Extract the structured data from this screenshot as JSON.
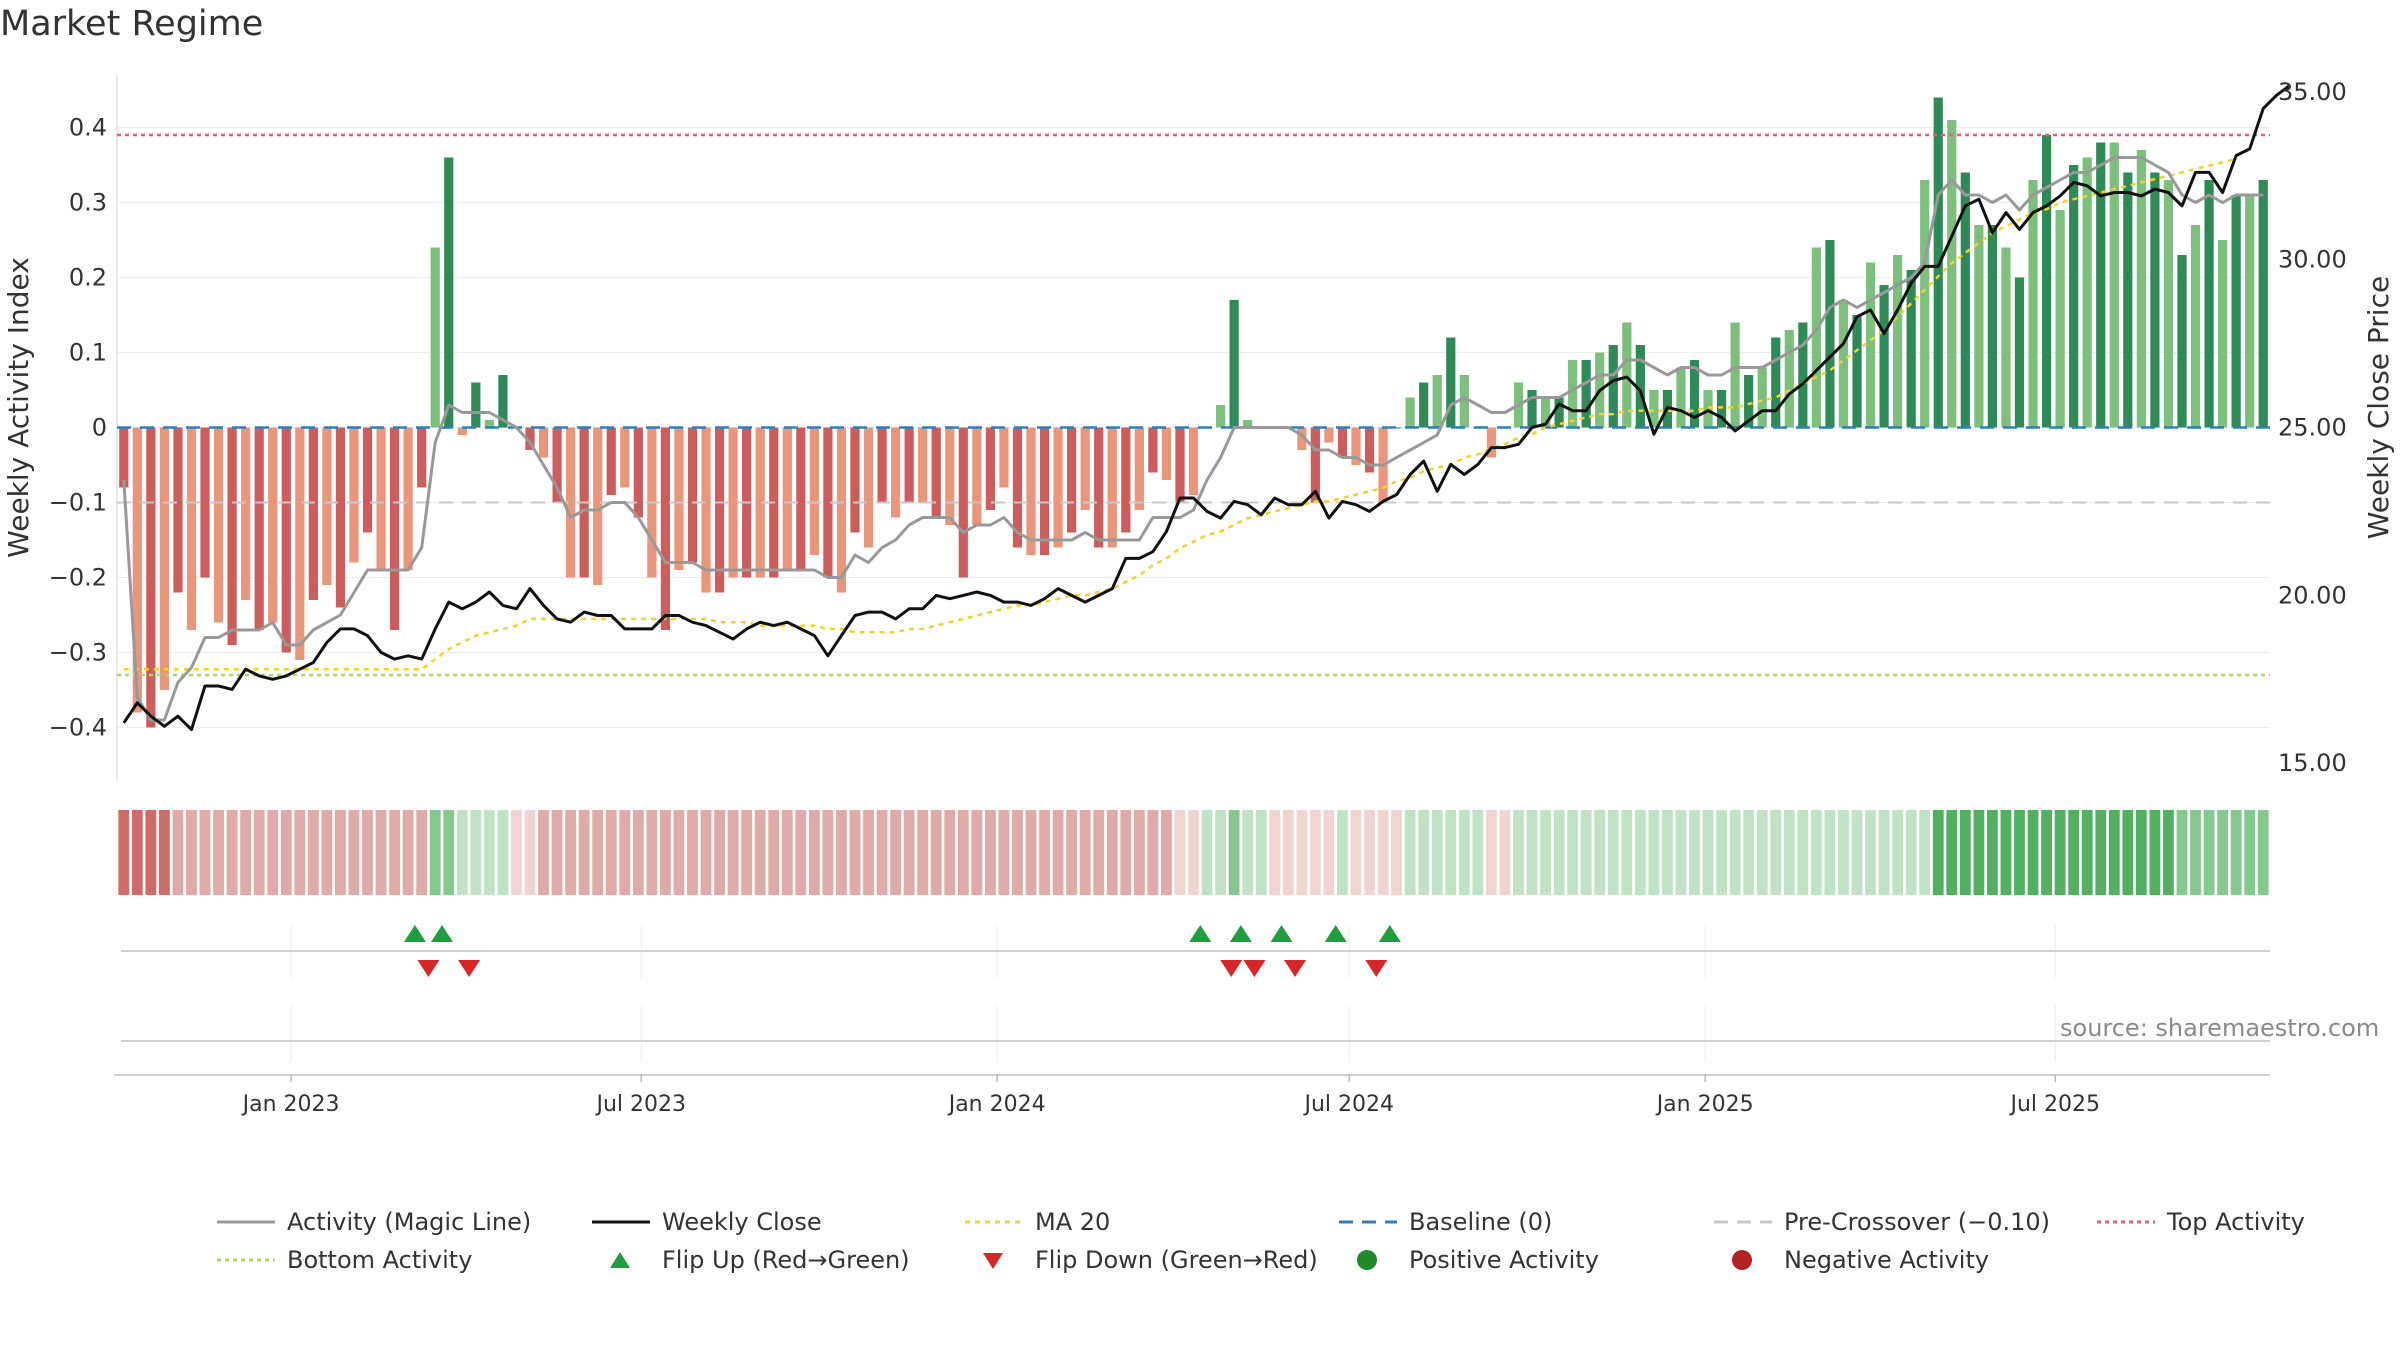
{
  "title": "Market Regime",
  "source": "source: sharemaestro.com",
  "colors": {
    "magic_line": "#999999",
    "weekly_close": "#111111",
    "ma20": "#f0d42a",
    "baseline": "#2f7fb8",
    "pre_crossover": "#c8c8c8",
    "top_activity": "#e0607e",
    "bottom_activity": "#a6d96a",
    "pos_strong": "#2e8b57",
    "pos_light": "#7dbf7d",
    "neg_strong": "#cd5c5c",
    "neg_light": "#e9967a",
    "flip_up": "#1f9e3f",
    "flip_down": "#d62728",
    "positive_activity": "#1e8a2c",
    "negative_activity": "#b22222"
  },
  "legend": [
    {
      "label": "Activity (Magic Line)",
      "kind": "line",
      "color": "#999999",
      "dash": ""
    },
    {
      "label": "Weekly Close",
      "kind": "line",
      "color": "#111111",
      "dash": ""
    },
    {
      "label": "MA 20",
      "kind": "line",
      "color": "#f0d42a",
      "dash": "5,5"
    },
    {
      "label": "Baseline (0)",
      "kind": "line",
      "color": "#2f7fb8",
      "dash": "14,9"
    },
    {
      "label": "Pre-Crossover (−0.10)",
      "kind": "line",
      "color": "#c8c8c8",
      "dash": "14,9"
    },
    {
      "label": "Top Activity",
      "kind": "line",
      "color": "#e0607e",
      "dash": "4,4"
    },
    {
      "label": "Bottom Activity",
      "kind": "line",
      "color": "#a6d96a",
      "dash": "4,4"
    },
    {
      "label": "Flip Up (Red→Green)",
      "kind": "tri-up",
      "color": "#1f9e3f"
    },
    {
      "label": "Flip Down (Green→Red)",
      "kind": "tri-down",
      "color": "#d62728"
    },
    {
      "label": "Positive Activity",
      "kind": "dot",
      "color": "#1e8a2c"
    },
    {
      "label": "Negative Activity",
      "kind": "dot",
      "color": "#b22222"
    }
  ],
  "chart_data": {
    "type": "bar",
    "ylabel_left": "Weekly Activity Index",
    "ylabel_right": "Weekly Close Price",
    "ylim_left": [
      -0.47,
      0.47
    ],
    "ylim_right": [
      14.5,
      35.5
    ],
    "yticks_left": [
      "−0.4",
      "−0.3",
      "−0.2",
      "−0.1",
      "0",
      "0.1",
      "0.2",
      "0.3",
      "0.4"
    ],
    "yticks_left_values": [
      -0.4,
      -0.3,
      -0.2,
      -0.1,
      0,
      0.1,
      0.2,
      0.3,
      0.4
    ],
    "yticks_right": [
      "15.00",
      "20.00",
      "25.00",
      "30.00",
      "35.00"
    ],
    "yticks_right_values": [
      15,
      20,
      25,
      30,
      35
    ],
    "x_start": "2022-10-03",
    "x_end": "2025-10-20",
    "xticks": [
      {
        "date": "2023-01-01",
        "label": "Jan 2023"
      },
      {
        "date": "2023-07-01",
        "label": "Jul 2023"
      },
      {
        "date": "2024-01-01",
        "label": "Jan 2024"
      },
      {
        "date": "2024-07-01",
        "label": "Jul 2024"
      },
      {
        "date": "2025-01-01",
        "label": "Jan 2025"
      },
      {
        "date": "2025-07-01",
        "label": "Jul 2025"
      }
    ],
    "reference_lines": {
      "top_activity": 0.39,
      "bottom_activity": -0.33,
      "pre_crossover": -0.1,
      "baseline": 0
    },
    "activity": [
      -0.08,
      -0.38,
      -0.4,
      -0.35,
      -0.22,
      -0.27,
      -0.2,
      -0.26,
      -0.29,
      -0.23,
      -0.27,
      -0.26,
      -0.3,
      -0.31,
      -0.23,
      -0.21,
      -0.24,
      -0.18,
      -0.14,
      -0.19,
      -0.27,
      -0.19,
      -0.08,
      0.24,
      0.36,
      -0.01,
      0.06,
      0.01,
      0.07,
      0.0,
      -0.03,
      -0.04,
      -0.1,
      -0.2,
      -0.2,
      -0.21,
      -0.09,
      -0.08,
      -0.12,
      -0.2,
      -0.27,
      -0.19,
      -0.18,
      -0.22,
      -0.22,
      -0.2,
      -0.2,
      -0.2,
      -0.2,
      -0.19,
      -0.19,
      -0.17,
      -0.2,
      -0.22,
      -0.14,
      -0.16,
      -0.1,
      -0.12,
      -0.1,
      -0.1,
      -0.12,
      -0.13,
      -0.2,
      -0.13,
      -0.11,
      -0.08,
      -0.16,
      -0.17,
      -0.17,
      -0.16,
      -0.14,
      -0.11,
      -0.16,
      -0.16,
      -0.14,
      -0.11,
      -0.06,
      -0.07,
      -0.1,
      -0.09,
      0.0,
      0.03,
      0.17,
      0.01,
      0.0,
      0.0,
      0.0,
      -0.03,
      -0.1,
      -0.02,
      -0.04,
      -0.05,
      -0.06,
      -0.1,
      0.0,
      0.04,
      0.06,
      0.07,
      0.12,
      0.07,
      0.0,
      -0.04,
      0.0,
      0.06,
      0.05,
      0.04,
      0.04,
      0.09,
      0.09,
      0.1,
      0.11,
      0.14,
      0.11,
      0.05,
      0.05,
      0.08,
      0.09,
      0.05,
      0.05,
      0.14,
      0.07,
      0.08,
      0.12,
      0.13,
      0.14,
      0.24,
      0.25,
      0.17,
      0.15,
      0.22,
      0.19,
      0.23,
      0.21,
      0.33,
      0.44,
      0.41,
      0.34,
      0.27,
      0.27,
      0.24,
      0.2,
      0.33,
      0.39,
      0.29,
      0.35,
      0.36,
      0.38,
      0.38,
      0.34,
      0.37,
      0.34,
      0.33,
      0.23,
      0.27,
      0.33,
      0.25,
      0.31,
      0.31,
      0.33
    ],
    "magic_line": [
      -0.07,
      -0.36,
      -0.39,
      -0.39,
      -0.34,
      -0.32,
      -0.28,
      -0.28,
      -0.27,
      -0.27,
      -0.27,
      -0.26,
      -0.29,
      -0.29,
      -0.27,
      -0.26,
      -0.25,
      -0.22,
      -0.19,
      -0.19,
      -0.19,
      -0.19,
      -0.16,
      -0.02,
      0.03,
      0.02,
      0.02,
      0.02,
      0.01,
      0.0,
      -0.02,
      -0.05,
      -0.08,
      -0.12,
      -0.11,
      -0.11,
      -0.1,
      -0.1,
      -0.12,
      -0.15,
      -0.18,
      -0.18,
      -0.18,
      -0.19,
      -0.19,
      -0.19,
      -0.19,
      -0.19,
      -0.19,
      -0.19,
      -0.19,
      -0.19,
      -0.2,
      -0.2,
      -0.17,
      -0.18,
      -0.16,
      -0.15,
      -0.13,
      -0.12,
      -0.12,
      -0.12,
      -0.14,
      -0.13,
      -0.13,
      -0.12,
      -0.14,
      -0.15,
      -0.15,
      -0.15,
      -0.15,
      -0.14,
      -0.15,
      -0.15,
      -0.15,
      -0.15,
      -0.12,
      -0.12,
      -0.12,
      -0.11,
      -0.07,
      -0.04,
      0.0,
      0.0,
      0.0,
      0.0,
      0.0,
      -0.01,
      -0.03,
      -0.03,
      -0.04,
      -0.04,
      -0.05,
      -0.05,
      -0.04,
      -0.03,
      -0.02,
      -0.01,
      0.03,
      0.04,
      0.03,
      0.02,
      0.02,
      0.03,
      0.04,
      0.04,
      0.04,
      0.05,
      0.06,
      0.07,
      0.07,
      0.09,
      0.09,
      0.08,
      0.07,
      0.08,
      0.08,
      0.07,
      0.07,
      0.08,
      0.08,
      0.08,
      0.09,
      0.1,
      0.11,
      0.13,
      0.16,
      0.17,
      0.16,
      0.17,
      0.18,
      0.19,
      0.2,
      0.22,
      0.31,
      0.33,
      0.31,
      0.31,
      0.3,
      0.31,
      0.29,
      0.31,
      0.32,
      0.33,
      0.34,
      0.34,
      0.35,
      0.36,
      0.36,
      0.36,
      0.35,
      0.34,
      0.31,
      0.3,
      0.31,
      0.3,
      0.31,
      0.31,
      0.31
    ],
    "weekly_close": [
      16.2,
      16.8,
      16.4,
      16.1,
      16.4,
      16.0,
      17.3,
      17.3,
      17.2,
      17.8,
      17.6,
      17.5,
      17.6,
      17.8,
      18.0,
      18.6,
      19.0,
      19.0,
      18.8,
      18.3,
      18.1,
      18.2,
      18.1,
      19.0,
      19.8,
      19.6,
      19.8,
      20.1,
      19.7,
      19.6,
      20.2,
      19.7,
      19.3,
      19.2,
      19.5,
      19.4,
      19.4,
      19.0,
      19.0,
      19.0,
      19.4,
      19.4,
      19.2,
      19.1,
      18.9,
      18.7,
      19.0,
      19.2,
      19.1,
      19.2,
      19.0,
      18.8,
      18.2,
      18.8,
      19.4,
      19.5,
      19.5,
      19.3,
      19.6,
      19.6,
      20.0,
      19.9,
      20.0,
      20.1,
      20.0,
      19.8,
      19.8,
      19.7,
      19.9,
      20.2,
      20.0,
      19.8,
      20.0,
      20.2,
      21.1,
      21.1,
      21.3,
      21.9,
      22.9,
      22.9,
      22.5,
      22.3,
      22.8,
      22.7,
      22.4,
      22.9,
      22.7,
      22.7,
      23.1,
      22.3,
      22.8,
      22.7,
      22.5,
      22.8,
      23.0,
      23.6,
      24.0,
      23.1,
      23.9,
      23.6,
      23.9,
      24.4,
      24.4,
      24.5,
      25.0,
      25.1,
      25.7,
      25.5,
      25.5,
      26.1,
      26.4,
      26.5,
      26.1,
      24.8,
      25.6,
      25.5,
      25.3,
      25.5,
      25.3,
      24.9,
      25.2,
      25.5,
      25.5,
      26.0,
      26.3,
      26.7,
      27.1,
      27.5,
      28.3,
      28.5,
      27.8,
      28.5,
      29.3,
      29.8,
      29.8,
      30.7,
      31.6,
      31.8,
      30.8,
      31.4,
      30.9,
      31.4,
      31.6,
      31.9,
      32.3,
      32.2,
      31.9,
      32.0,
      32.0,
      31.9,
      32.1,
      32.0,
      31.6,
      32.6,
      32.6,
      32.0,
      33.1,
      33.3,
      34.5,
      34.9,
      35.2
    ],
    "ma20": [
      17.8,
      17.8,
      17.8,
      17.8,
      17.8,
      17.8,
      17.8,
      17.8,
      17.8,
      17.8,
      17.8,
      17.8,
      17.8,
      17.8,
      17.8,
      17.8,
      17.8,
      17.8,
      17.8,
      17.8,
      17.8,
      17.8,
      17.8,
      18.1,
      18.4,
      18.6,
      18.8,
      18.9,
      19.0,
      19.1,
      19.3,
      19.3,
      19.3,
      19.3,
      19.3,
      19.3,
      19.3,
      19.3,
      19.3,
      19.3,
      19.3,
      19.3,
      19.3,
      19.3,
      19.2,
      19.2,
      19.2,
      19.1,
      19.1,
      19.1,
      19.1,
      19.1,
      19.0,
      19.0,
      18.9,
      18.9,
      18.9,
      18.9,
      19.0,
      19.0,
      19.1,
      19.2,
      19.3,
      19.4,
      19.5,
      19.6,
      19.7,
      19.7,
      19.8,
      19.9,
      20.0,
      20.0,
      20.1,
      20.2,
      20.4,
      20.6,
      20.9,
      21.1,
      21.4,
      21.6,
      21.8,
      21.9,
      22.1,
      22.3,
      22.4,
      22.5,
      22.6,
      22.7,
      22.8,
      22.8,
      22.9,
      23.0,
      23.1,
      23.2,
      23.4,
      23.5,
      23.7,
      23.8,
      23.9,
      24.1,
      24.2,
      24.4,
      24.5,
      24.7,
      24.8,
      25.0,
      25.1,
      25.2,
      25.3,
      25.4,
      25.4,
      25.5,
      25.5,
      25.5,
      25.5,
      25.5,
      25.5,
      25.6,
      25.6,
      25.6,
      25.7,
      25.8,
      25.9,
      26.1,
      26.3,
      26.5,
      26.7,
      27.0,
      27.3,
      27.6,
      27.9,
      28.3,
      28.7,
      29.1,
      29.5,
      29.9,
      30.2,
      30.5,
      30.8,
      31.0,
      31.2,
      31.4,
      31.5,
      31.7,
      31.8,
      31.9,
      32.0,
      32.1,
      32.2,
      32.3,
      32.4,
      32.5,
      32.6,
      32.7,
      32.8,
      32.9,
      33.0
    ],
    "regime_strip": [
      2,
      2,
      2,
      2,
      1,
      1,
      1,
      1,
      1,
      1,
      1,
      1,
      1,
      1,
      1,
      1,
      1,
      1,
      1,
      1,
      1,
      1,
      1,
      4,
      4,
      3,
      3,
      3,
      3,
      0,
      0,
      1,
      1,
      1,
      1,
      1,
      1,
      1,
      1,
      1,
      1,
      1,
      1,
      1,
      1,
      1,
      1,
      1,
      1,
      1,
      1,
      1,
      1,
      1,
      1,
      1,
      1,
      1,
      1,
      1,
      1,
      1,
      1,
      1,
      1,
      1,
      1,
      1,
      1,
      1,
      1,
      1,
      1,
      1,
      1,
      1,
      1,
      1,
      0,
      0,
      3,
      3,
      4,
      3,
      3,
      0,
      0,
      0,
      0,
      0,
      3,
      0,
      0,
      0,
      0,
      3,
      3,
      3,
      3,
      3,
      3,
      0,
      0,
      3,
      3,
      3,
      3,
      3,
      3,
      3,
      3,
      3,
      3,
      3,
      3,
      3,
      3,
      3,
      3,
      3,
      3,
      3,
      3,
      3,
      3,
      3,
      3,
      3,
      3,
      3,
      3,
      3,
      3,
      3,
      5,
      5,
      5,
      5,
      5,
      5,
      5,
      5,
      5,
      5,
      5,
      5,
      5,
      5,
      5,
      5,
      5,
      5,
      4,
      4,
      4,
      4,
      4,
      4,
      4
    ],
    "flips_up": [
      "2023-03-06",
      "2023-03-20",
      "2024-04-15",
      "2024-05-06",
      "2024-05-27",
      "2024-06-24",
      "2024-07-22"
    ],
    "flips_down": [
      "2023-03-13",
      "2023-04-03",
      "2024-05-01",
      "2024-05-13",
      "2024-06-03",
      "2024-07-15"
    ]
  }
}
